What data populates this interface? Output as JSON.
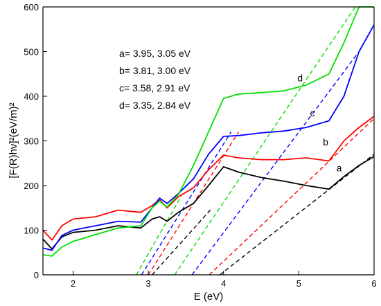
{
  "chart_data": {
    "type": "line",
    "title": "",
    "xlabel": "E (eV)",
    "ylabel": "[F(R)hν]²(eV/m)²",
    "xlim": [
      1.6,
      6.0
    ],
    "ylim": [
      0,
      600
    ],
    "x_ticks": [
      2,
      3,
      4,
      5,
      6
    ],
    "y_ticks": [
      0,
      100,
      200,
      300,
      400,
      500,
      600
    ],
    "annotations": [
      "a= 3.95, 3.05 eV",
      "b= 3.81, 3.00 eV",
      "c= 3.58, 2.91 eV",
      "d= 3.35, 2.84 eV"
    ],
    "series": [
      {
        "label": "a",
        "color": "#000000",
        "x": [
          1.6,
          1.72,
          1.85,
          2.0,
          2.3,
          2.6,
          2.9,
          3.05,
          3.15,
          3.25,
          3.4,
          3.6,
          3.8,
          4.0,
          4.2,
          4.5,
          4.8,
          5.1,
          5.4,
          5.6,
          5.8,
          6.0
        ],
        "y": [
          80,
          58,
          85,
          95,
          100,
          110,
          105,
          125,
          130,
          120,
          140,
          160,
          200,
          242,
          230,
          218,
          210,
          200,
          192,
          220,
          245,
          265
        ],
        "label_at": [
          5.5,
          232
        ]
      },
      {
        "label": "b",
        "color": "#ff0000",
        "x": [
          1.6,
          1.72,
          1.85,
          2.0,
          2.3,
          2.6,
          2.9,
          3.05,
          3.15,
          3.25,
          3.4,
          3.6,
          3.8,
          4.0,
          4.2,
          4.5,
          4.8,
          5.1,
          5.4,
          5.6,
          5.8,
          6.0
        ],
        "y": [
          100,
          78,
          110,
          125,
          130,
          145,
          140,
          155,
          168,
          150,
          175,
          195,
          235,
          268,
          262,
          258,
          258,
          262,
          255,
          300,
          330,
          355
        ],
        "label_at": [
          5.32,
          290
        ]
      },
      {
        "label": "c",
        "color": "#0000ff",
        "x": [
          1.6,
          1.72,
          1.85,
          2.0,
          2.3,
          2.6,
          2.9,
          3.05,
          3.15,
          3.25,
          3.4,
          3.6,
          3.8,
          4.0,
          4.2,
          4.5,
          4.8,
          5.1,
          5.4,
          5.6,
          5.8,
          6.0
        ],
        "y": [
          60,
          55,
          88,
          100,
          110,
          120,
          118,
          150,
          172,
          160,
          182,
          215,
          270,
          310,
          312,
          318,
          322,
          330,
          345,
          400,
          500,
          560
        ],
        "label_at": [
          5.15,
          355
        ]
      },
      {
        "label": "d",
        "color": "#00e000",
        "x": [
          1.6,
          1.72,
          1.85,
          2.0,
          2.3,
          2.6,
          2.9,
          3.05,
          3.15,
          3.25,
          3.4,
          3.6,
          3.8,
          4.0,
          4.2,
          4.5,
          4.8,
          5.1,
          5.4,
          5.6,
          5.8,
          6.0
        ],
        "y": [
          45,
          42,
          62,
          75,
          90,
          105,
          110,
          150,
          165,
          152,
          180,
          245,
          320,
          395,
          405,
          408,
          412,
          425,
          450,
          520,
          600,
          600
        ],
        "label_at": [
          4.98,
          433
        ]
      }
    ],
    "tangent_lines": [
      {
        "series": "a",
        "color": "#000000",
        "x": [
          3.95,
          6.0
        ],
        "y": [
          0,
          270
        ]
      },
      {
        "series": "a",
        "color": "#000000",
        "x": [
          3.05,
          3.85
        ],
        "y": [
          0,
          150
        ]
      },
      {
        "series": "b",
        "color": "#ff0000",
        "x": [
          3.81,
          6.0
        ],
        "y": [
          0,
          350
        ]
      },
      {
        "series": "b",
        "color": "#ff0000",
        "x": [
          3.0,
          4.2
        ],
        "y": [
          0,
          320
        ]
      },
      {
        "series": "c",
        "color": "#0000ff",
        "x": [
          3.58,
          5.8
        ],
        "y": [
          0,
          500
        ]
      },
      {
        "series": "c",
        "color": "#0000ff",
        "x": [
          2.91,
          4.1
        ],
        "y": [
          0,
          320
        ]
      },
      {
        "series": "d",
        "color": "#00e000",
        "x": [
          3.35,
          5.75
        ],
        "y": [
          0,
          600
        ]
      },
      {
        "series": "d",
        "color": "#00e000",
        "x": [
          2.84,
          3.45
        ],
        "y": [
          0,
          180
        ]
      }
    ]
  }
}
